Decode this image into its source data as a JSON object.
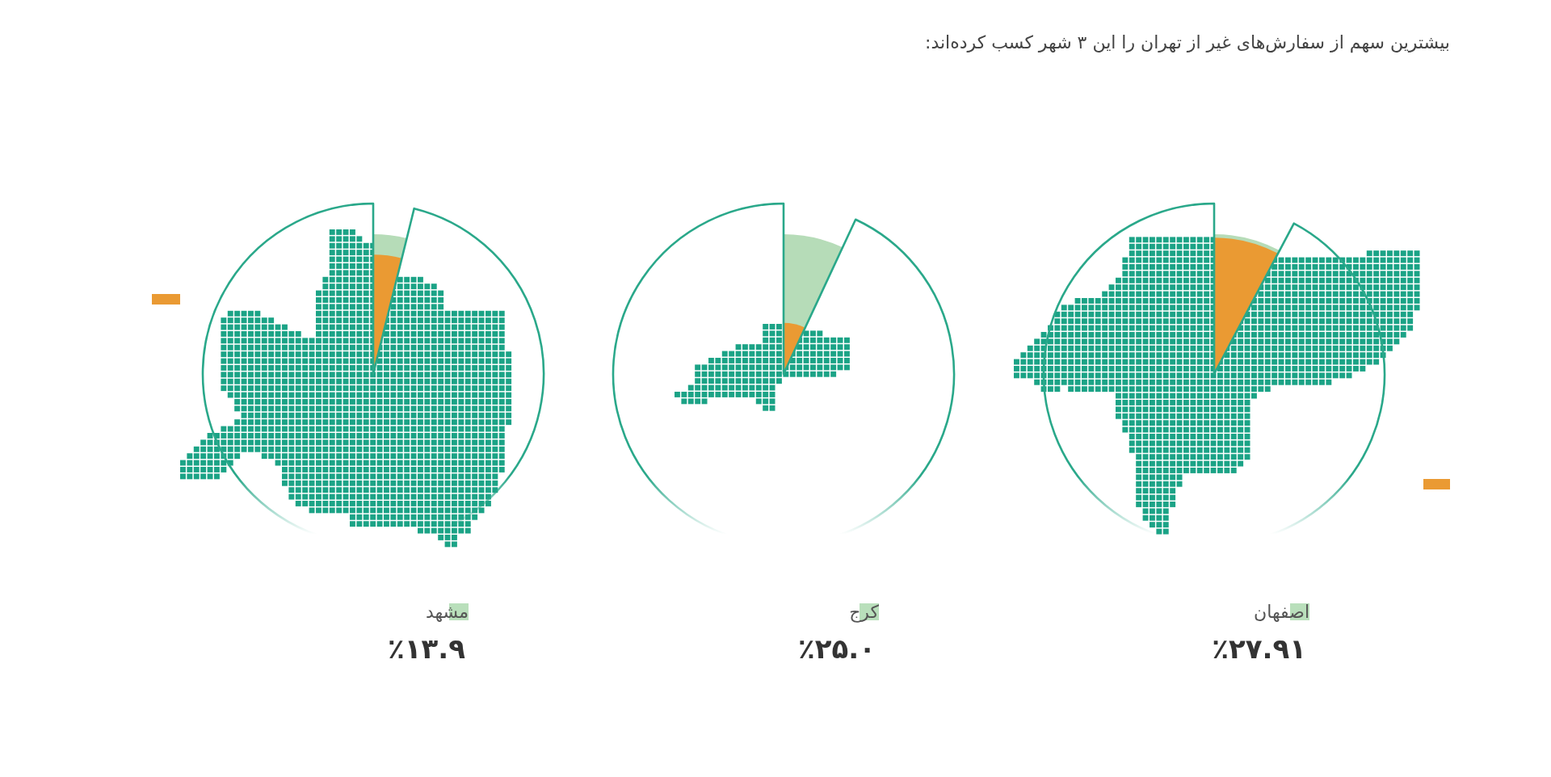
{
  "chart_data": {
    "type": "other",
    "title": "بیشترین سهم از سفارش‌های غیر از تهران را این ۳ شهر کسب کرده‌اند:",
    "categories": [
      "مشهد",
      "کرج",
      "اصفهان"
    ],
    "values": [
      13.9,
      25.0,
      27.91
    ],
    "value_labels": [
      "٪۱۳.۹",
      "٪۲۵.۰",
      "٪۲۷.۹۱"
    ],
    "colors": [
      "#b6dcb8",
      "#b6dcb8",
      "#b6dcb8"
    ]
  }
}
